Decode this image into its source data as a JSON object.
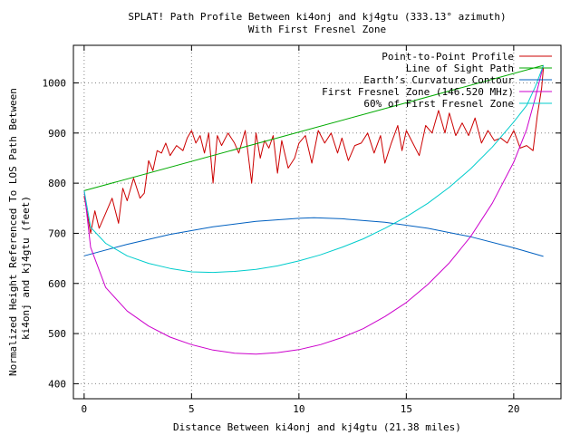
{
  "chart_data": {
    "type": "line",
    "title": "SPLAT! Path Profile Between ki4onj and kj4gtu (333.13° azimuth)",
    "subtitle": "With First Fresnel Zone",
    "xlabel": "Distance Between ki4onj and kj4gtu (21.38 miles)",
    "ylabel_line1": "Normalized Height Referenced To LOS Path Between",
    "ylabel_line2": "ki4onj and kj4gtu (feet)",
    "xlim": [
      -0.5,
      22.2
    ],
    "ylim": [
      370,
      1075
    ],
    "xticks": [
      0,
      5,
      10,
      15,
      20
    ],
    "yticks": [
      400,
      500,
      600,
      700,
      800,
      900,
      1000
    ],
    "grid": true,
    "legend_position": "top-right",
    "series": [
      {
        "name": "Point-to-Point Profile",
        "color": "#cc0000",
        "x": [
          0,
          0.3,
          0.5,
          0.7,
          1.0,
          1.3,
          1.6,
          1.8,
          2.0,
          2.3,
          2.6,
          2.8,
          3.0,
          3.2,
          3.4,
          3.6,
          3.8,
          4.0,
          4.3,
          4.6,
          4.8,
          5.0,
          5.2,
          5.4,
          5.6,
          5.8,
          6.0,
          6.2,
          6.4,
          6.7,
          7.0,
          7.2,
          7.5,
          7.8,
          8.0,
          8.2,
          8.4,
          8.6,
          8.8,
          9.0,
          9.2,
          9.5,
          9.8,
          10.0,
          10.3,
          10.6,
          10.9,
          11.2,
          11.5,
          11.8,
          12.0,
          12.3,
          12.6,
          12.9,
          13.2,
          13.5,
          13.8,
          14.0,
          14.3,
          14.6,
          14.8,
          15.0,
          15.3,
          15.6,
          15.9,
          16.2,
          16.5,
          16.8,
          17.0,
          17.3,
          17.6,
          17.9,
          18.2,
          18.5,
          18.8,
          19.1,
          19.4,
          19.7,
          20.0,
          20.3,
          20.6,
          20.9,
          21.1,
          21.3,
          21.38
        ],
        "y": [
          775,
          700,
          745,
          710,
          740,
          770,
          720,
          790,
          765,
          810,
          770,
          780,
          845,
          825,
          865,
          860,
          880,
          855,
          875,
          865,
          890,
          905,
          880,
          895,
          860,
          900,
          800,
          895,
          875,
          900,
          880,
          860,
          905,
          800,
          900,
          850,
          885,
          870,
          895,
          820,
          885,
          830,
          850,
          880,
          895,
          840,
          905,
          880,
          900,
          860,
          890,
          845,
          875,
          880,
          900,
          860,
          895,
          840,
          880,
          915,
          865,
          905,
          880,
          855,
          915,
          900,
          945,
          900,
          940,
          895,
          920,
          895,
          930,
          880,
          905,
          885,
          890,
          880,
          905,
          870,
          875,
          865,
          935,
          990,
          1030
        ]
      },
      {
        "name": "Line of Sight Path",
        "color": "#00aa00",
        "x": [
          0,
          21.38
        ],
        "y": [
          785,
          1035
        ]
      },
      {
        "name": "Earth’s Curvature Contour",
        "color": "#0060c0",
        "x": [
          0,
          2,
          4,
          6,
          8,
          10,
          10.7,
          12,
          14,
          16,
          18,
          20,
          21.38
        ],
        "y": [
          655,
          678,
          698,
          713,
          724,
          730,
          731,
          729,
          722,
          710,
          693,
          671,
          654
        ]
      },
      {
        "name": "First Fresnel Zone (146.520 MHz)",
        "color": "#cc00cc",
        "x": [
          0,
          0.3,
          1,
          2,
          3,
          4,
          5,
          6,
          7,
          8,
          9,
          10,
          11,
          12,
          13,
          14,
          15,
          16,
          17,
          18,
          19,
          20,
          20.6,
          21.0,
          21.38
        ],
        "y": [
          785,
          672,
          592,
          545,
          515,
          493,
          478,
          467,
          461,
          459,
          462,
          468,
          478,
          492,
          510,
          534,
          562,
          598,
          641,
          694,
          760,
          842,
          907,
          970,
          1035
        ]
      },
      {
        "name": "60% of First Fresnel Zone",
        "color": "#00cccc",
        "x": [
          0,
          0.3,
          1,
          2,
          3,
          4,
          5,
          6,
          7,
          8,
          9,
          10,
          11,
          12,
          13,
          14,
          15,
          16,
          17,
          18,
          19,
          20,
          20.6,
          21.0,
          21.38
        ],
        "y": [
          785,
          712,
          680,
          655,
          640,
          630,
          623,
          622,
          624,
          628,
          635,
          645,
          657,
          672,
          689,
          710,
          733,
          760,
          792,
          829,
          872,
          922,
          955,
          992,
          1035
        ]
      }
    ]
  }
}
